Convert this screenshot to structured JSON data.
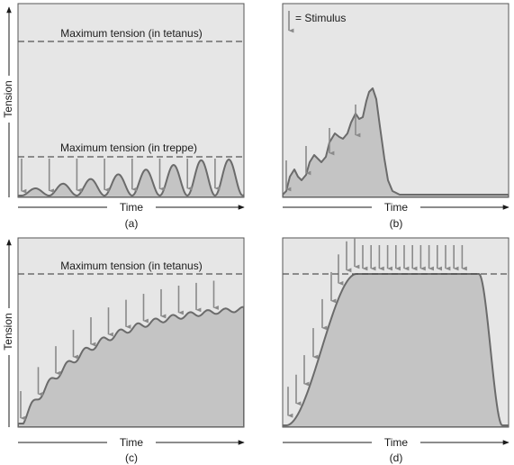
{
  "panels": {
    "a": {
      "letter": "(a)",
      "x_axis_label": "Time",
      "y_axis_label": "Tension",
      "upper_line_label": "Maximum tension (in tetanus)",
      "lower_line_label": "Maximum tension (in treppe)"
    },
    "b": {
      "letter": "(b)",
      "x_axis_label": "Time",
      "legend_label": "= Stimulus"
    },
    "c": {
      "letter": "(c)",
      "x_axis_label": "Time",
      "y_axis_label": "Tension",
      "line_label": "Maximum tension (in tetanus)"
    },
    "d": {
      "letter": "(d)",
      "x_axis_label": "Time"
    }
  },
  "colors": {
    "panel_background": "#e6e6e6",
    "curve_fill": "#c4c4c4",
    "curve_stroke": "#6b6b6b",
    "stimulus_arrow": "#8a8a8a",
    "dashed_line": "#555555"
  }
}
